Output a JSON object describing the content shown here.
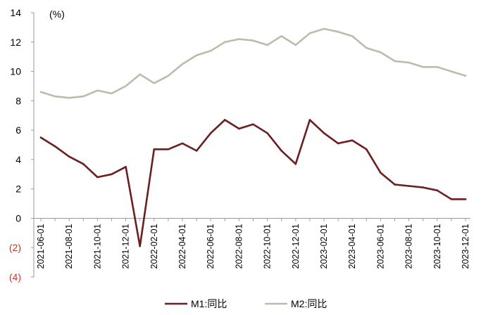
{
  "chart_data": {
    "type": "line",
    "unit_label": "(%)",
    "ylim": [
      -4,
      14
    ],
    "y_ticks": [
      {
        "value": -4,
        "label": "(4)"
      },
      {
        "value": -2,
        "label": "(2)"
      },
      {
        "value": 0,
        "label": "0"
      },
      {
        "value": 2,
        "label": "2"
      },
      {
        "value": 4,
        "label": "4"
      },
      {
        "value": 6,
        "label": "6"
      },
      {
        "value": 8,
        "label": "8"
      },
      {
        "value": 10,
        "label": "10"
      },
      {
        "value": 12,
        "label": "12"
      },
      {
        "value": 14,
        "label": "14"
      }
    ],
    "negative_tick_color": "#c0392b",
    "x": [
      "2021-06-01",
      "2021-07-01",
      "2021-08-01",
      "2021-09-01",
      "2021-10-01",
      "2021-11-01",
      "2021-12-01",
      "2022-01-01",
      "2022-02-01",
      "2022-03-01",
      "2022-04-01",
      "2022-05-01",
      "2022-06-01",
      "2022-07-01",
      "2022-08-01",
      "2022-09-01",
      "2022-10-01",
      "2022-11-01",
      "2022-12-01",
      "2023-01-01",
      "2023-02-01",
      "2023-03-01",
      "2023-04-01",
      "2023-05-01",
      "2023-06-01",
      "2023-07-01",
      "2023-08-01",
      "2023-09-01",
      "2023-10-01",
      "2023-11-01",
      "2023-12-01"
    ],
    "x_tick_labels": [
      "2021-06-01",
      "2021-08-01",
      "2021-10-01",
      "2021-12-01",
      "2022-02-01",
      "2022-04-01",
      "2022-06-01",
      "2022-08-01",
      "2022-10-01",
      "2022-12-01",
      "2023-02-01",
      "2023-04-01",
      "2023-06-01",
      "2023-08-01",
      "2023-10-01",
      "2023-12-01"
    ],
    "series": [
      {
        "name": "M1:同比",
        "color": "#6b1f1f",
        "values": [
          5.5,
          4.9,
          4.2,
          3.7,
          2.8,
          3.0,
          3.5,
          -1.9,
          4.7,
          4.7,
          5.1,
          4.6,
          5.8,
          6.7,
          6.1,
          6.4,
          5.8,
          4.6,
          3.7,
          6.7,
          5.8,
          5.1,
          5.3,
          4.7,
          3.1,
          2.3,
          2.2,
          2.1,
          1.9,
          1.3,
          1.3
        ]
      },
      {
        "name": "M2:同比",
        "color": "#bcbcae",
        "values": [
          8.6,
          8.3,
          8.2,
          8.3,
          8.7,
          8.5,
          9.0,
          9.8,
          9.2,
          9.7,
          10.5,
          11.1,
          11.4,
          12.0,
          12.2,
          12.1,
          11.8,
          12.4,
          11.8,
          12.6,
          12.9,
          12.7,
          12.4,
          11.6,
          11.3,
          10.7,
          10.6,
          10.3,
          10.3,
          10.0,
          9.7
        ]
      }
    ],
    "legend_position": "bottom-center",
    "grid": false
  }
}
